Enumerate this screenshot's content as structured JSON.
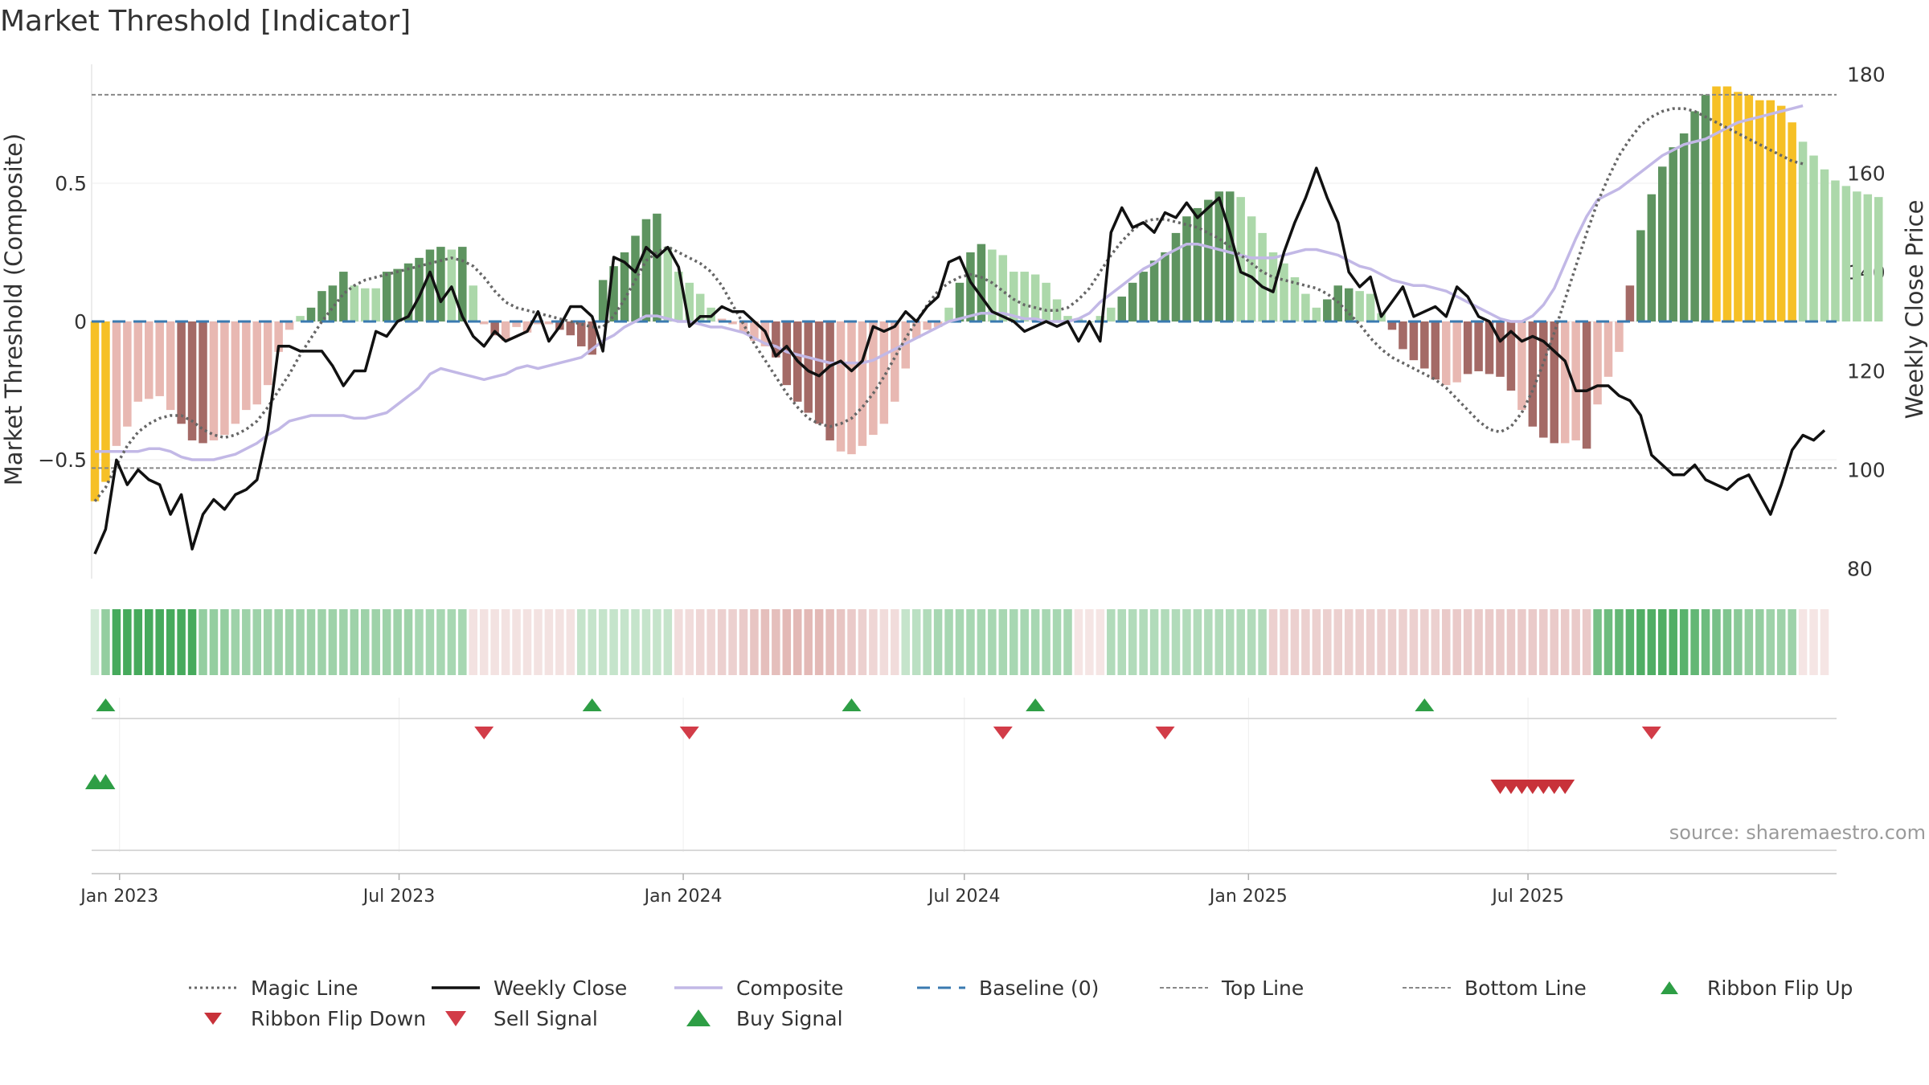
{
  "title": "Market Threshold [Indicator]",
  "source_label": "source: sharemaestro.com",
  "colors": {
    "strong_up": "#5e9460",
    "weak_up": "#acd8aa",
    "strong_down": "#a46a66",
    "weak_down": "#e8b8b2",
    "extreme": "#f6c026",
    "weekly_close": "#111111",
    "composite": "#c2b8e6",
    "magic_line": "#666666",
    "baseline": "#3a7ab0",
    "threshold_line": "#888888",
    "buy": "#2e9e45",
    "sell": "#d23c48",
    "flip_down": "#c8323a"
  },
  "legend": [
    {
      "key": "magic",
      "label": "Magic Line",
      "style": "dotted",
      "color": "#666666"
    },
    {
      "key": "close",
      "label": "Weekly Close",
      "style": "solid",
      "color": "#111111"
    },
    {
      "key": "composite",
      "label": "Composite",
      "style": "solid",
      "color": "#c2b8e6"
    },
    {
      "key": "baseline",
      "label": "Baseline (0)",
      "style": "dashed",
      "color": "#3a7ab0"
    },
    {
      "key": "top",
      "label": "Top Line",
      "style": "dashed-fine",
      "color": "#888888"
    },
    {
      "key": "bottom",
      "label": "Bottom Line",
      "style": "dashed-fine",
      "color": "#888888"
    },
    {
      "key": "flipup",
      "label": "Ribbon Flip Up",
      "style": "tri-up",
      "color": "#2e9e45"
    },
    {
      "key": "flipdown",
      "label": "Ribbon Flip Down",
      "style": "tri-down",
      "color": "#c8323a"
    },
    {
      "key": "sell",
      "label": "Sell Signal",
      "style": "tri-down",
      "color": "#d23c48"
    },
    {
      "key": "buy",
      "label": "Buy Signal",
      "style": "tri-up-big",
      "color": "#2e9e45"
    }
  ],
  "chart_data": {
    "type": "bar",
    "ylabel_left": "Market Threshold (Composite)",
    "ylabel_right": "Weekly Close Price",
    "left_ticks": [
      "0.5",
      "0",
      "−0.5"
    ],
    "left_tick_values": [
      0.5,
      0,
      -0.5
    ],
    "right_ticks": [
      "180",
      "160",
      "140",
      "120",
      "100",
      "80"
    ],
    "right_tick_values": [
      180,
      160,
      140,
      120,
      100,
      80
    ],
    "left_ylim": [
      -0.93,
      0.93
    ],
    "right_ylim": [
      78,
      182
    ],
    "top_line": 0.82,
    "bottom_line": -0.53,
    "x_start": "2022-12-16",
    "x_step_days": 7,
    "x_ticks": [
      {
        "label": "Jan 2023",
        "date": "2023-01-01"
      },
      {
        "label": "Jul 2023",
        "date": "2023-07-01"
      },
      {
        "label": "Jan 2024",
        "date": "2024-01-01"
      },
      {
        "label": "Jul 2024",
        "date": "2024-07-01"
      },
      {
        "label": "Jan 2025",
        "date": "2025-01-01"
      },
      {
        "label": "Jul 2025",
        "date": "2025-07-01"
      }
    ],
    "composite_bars": [
      -0.65,
      -0.58,
      -0.45,
      -0.38,
      -0.29,
      -0.28,
      -0.27,
      -0.32,
      -0.37,
      -0.43,
      -0.44,
      -0.43,
      -0.41,
      -0.37,
      -0.32,
      -0.3,
      -0.23,
      -0.11,
      -0.03,
      0.02,
      0.05,
      0.11,
      0.13,
      0.18,
      0.13,
      0.12,
      0.12,
      0.18,
      0.19,
      0.21,
      0.23,
      0.26,
      0.27,
      0.26,
      0.27,
      0.13,
      -0.01,
      -0.05,
      -0.07,
      -0.02,
      -0.04,
      -0.01,
      -0.01,
      -0.03,
      -0.05,
      -0.09,
      -0.12,
      0.15,
      0.2,
      0.25,
      0.31,
      0.37,
      0.39,
      0.27,
      0.18,
      0.14,
      0.1,
      0.05,
      0.01,
      -0.01,
      -0.04,
      -0.07,
      -0.09,
      -0.13,
      -0.23,
      -0.29,
      -0.33,
      -0.37,
      -0.43,
      -0.47,
      -0.48,
      -0.45,
      -0.41,
      -0.37,
      -0.29,
      -0.17,
      -0.06,
      -0.03,
      -0.02,
      0.05,
      0.14,
      0.25,
      0.28,
      0.26,
      0.24,
      0.18,
      0.18,
      0.17,
      0.14,
      0.08,
      0.02,
      0.01,
      0.0,
      0.02,
      0.05,
      0.09,
      0.14,
      0.18,
      0.22,
      0.25,
      0.32,
      0.38,
      0.41,
      0.44,
      0.47,
      0.47,
      0.45,
      0.38,
      0.32,
      0.25,
      0.21,
      0.16,
      0.1,
      0.05,
      0.08,
      0.13,
      0.12,
      0.11,
      0.1,
      0.03,
      -0.03,
      -0.1,
      -0.14,
      -0.17,
      -0.21,
      -0.23,
      -0.22,
      -0.19,
      -0.18,
      -0.19,
      -0.2,
      -0.25,
      -0.32,
      -0.38,
      -0.42,
      -0.44,
      -0.44,
      -0.43,
      -0.46,
      -0.3,
      -0.2,
      -0.11,
      0.13,
      0.33,
      0.46,
      0.56,
      0.63,
      0.68,
      0.76,
      0.82,
      0.85,
      0.85,
      0.83,
      0.82,
      0.8,
      0.8,
      0.78,
      0.72,
      0.65,
      0.6,
      0.55,
      0.51,
      0.49,
      0.47,
      0.46,
      0.45
    ],
    "bar_state": [
      "E",
      "E",
      "WD",
      "WD",
      "WD",
      "WD",
      "WD",
      "WD",
      "SD",
      "SD",
      "SD",
      "WD",
      "WD",
      "WD",
      "WD",
      "WD",
      "WD",
      "WD",
      "WD",
      "WU",
      "SU",
      "SU",
      "SU",
      "SU",
      "WU",
      "WU",
      "WU",
      "SU",
      "SU",
      "SU",
      "SU",
      "SU",
      "SU",
      "WU",
      "SU",
      "WU",
      "WD",
      "SD",
      "WD",
      "WD",
      "WD",
      "WD",
      "WD",
      "SD",
      "SD",
      "SD",
      "SD",
      "SU",
      "SU",
      "SU",
      "SU",
      "SU",
      "SU",
      "WU",
      "WU",
      "WU",
      "WU",
      "WU",
      "WD",
      "WD",
      "WD",
      "WD",
      "WD",
      "SD",
      "SD",
      "SD",
      "SD",
      "SD",
      "SD",
      "WD",
      "WD",
      "WD",
      "WD",
      "WD",
      "WD",
      "WD",
      "WD",
      "WD",
      "WD",
      "WU",
      "SU",
      "SU",
      "SU",
      "WU",
      "WU",
      "WU",
      "WU",
      "WU",
      "WU",
      "WU",
      "WU",
      "WU",
      "WU",
      "WU",
      "WU",
      "SU",
      "SU",
      "SU",
      "SU",
      "SU",
      "SU",
      "SU",
      "SU",
      "SU",
      "SU",
      "SU",
      "WU",
      "WU",
      "WU",
      "WU",
      "WU",
      "WU",
      "WU",
      "WU",
      "SU",
      "SU",
      "SU",
      "WU",
      "WU",
      "WU",
      "SD",
      "SD",
      "SD",
      "SD",
      "SD",
      "WD",
      "WD",
      "SD",
      "SD",
      "SD",
      "SD",
      "SD",
      "WD",
      "SD",
      "SD",
      "SD",
      "WD",
      "WD",
      "SD",
      "WD",
      "WD",
      "WD",
      "SD",
      "SU",
      "SU",
      "SU",
      "SU",
      "SU",
      "SU",
      "SU",
      "E",
      "E",
      "E",
      "E",
      "E",
      "E",
      "E",
      "E",
      "WU",
      "WU",
      "WU",
      "WU",
      "WU",
      "WU",
      "WU",
      "WU",
      "WU",
      "WU"
    ],
    "weekly_close": [
      83,
      88,
      102,
      97,
      100,
      98,
      97,
      91,
      95,
      84,
      91,
      94,
      92,
      95,
      96,
      98,
      108,
      125,
      125,
      124,
      124,
      124,
      121,
      117,
      120,
      120,
      128,
      127,
      130,
      131,
      135,
      140,
      134,
      137,
      131,
      127,
      125,
      128,
      126,
      127,
      128,
      132,
      126,
      129,
      133,
      133,
      131,
      124,
      143,
      142,
      140,
      145,
      143,
      145,
      141,
      129,
      131,
      131,
      133,
      132,
      132,
      130,
      128,
      123,
      125,
      122,
      120,
      119,
      121,
      122,
      120,
      122,
      129,
      128,
      129,
      132,
      130,
      133,
      135,
      142,
      143,
      138,
      135,
      132,
      131,
      130,
      128,
      129,
      130,
      129,
      130,
      126,
      130,
      126,
      148,
      153,
      149,
      150,
      148,
      152,
      151,
      154,
      151,
      153,
      155,
      148,
      140,
      139,
      137,
      136,
      144,
      150,
      155,
      161,
      155,
      150,
      140,
      137,
      139,
      131,
      134,
      137,
      131,
      132,
      133,
      131,
      137,
      135,
      131,
      130,
      126,
      128,
      126,
      127,
      126,
      124,
      122,
      116,
      116,
      117,
      117,
      115,
      114,
      111,
      103,
      101,
      99,
      99,
      101,
      98,
      97,
      96,
      98,
      99,
      95,
      91,
      97,
      104,
      107,
      106,
      108
    ],
    "composite_line": [
      -0.47,
      -0.47,
      -0.47,
      -0.47,
      -0.47,
      -0.46,
      -0.46,
      -0.47,
      -0.49,
      -0.5,
      -0.5,
      -0.5,
      -0.49,
      -0.48,
      -0.46,
      -0.44,
      -0.41,
      -0.39,
      -0.36,
      -0.35,
      -0.34,
      -0.34,
      -0.34,
      -0.34,
      -0.35,
      -0.35,
      -0.34,
      -0.33,
      -0.3,
      -0.27,
      -0.24,
      -0.19,
      -0.17,
      -0.18,
      -0.19,
      -0.2,
      -0.21,
      -0.2,
      -0.19,
      -0.17,
      -0.16,
      -0.17,
      -0.16,
      -0.15,
      -0.14,
      -0.13,
      -0.1,
      -0.07,
      -0.05,
      -0.02,
      0.0,
      0.02,
      0.02,
      0.01,
      0.0,
      0.0,
      -0.01,
      -0.02,
      -0.02,
      -0.03,
      -0.04,
      -0.06,
      -0.08,
      -0.09,
      -0.11,
      -0.12,
      -0.13,
      -0.14,
      -0.15,
      -0.15,
      -0.15,
      -0.15,
      -0.14,
      -0.12,
      -0.1,
      -0.08,
      -0.06,
      -0.04,
      -0.02,
      0.0,
      0.01,
      0.02,
      0.03,
      0.03,
      0.03,
      0.02,
      0.01,
      0.01,
      0.0,
      0.0,
      0.0,
      0.01,
      0.03,
      0.07,
      0.1,
      0.13,
      0.16,
      0.19,
      0.21,
      0.24,
      0.26,
      0.28,
      0.28,
      0.27,
      0.26,
      0.25,
      0.24,
      0.23,
      0.23,
      0.23,
      0.24,
      0.25,
      0.26,
      0.26,
      0.25,
      0.24,
      0.22,
      0.2,
      0.19,
      0.17,
      0.15,
      0.14,
      0.13,
      0.13,
      0.12,
      0.11,
      0.09,
      0.07,
      0.05,
      0.03,
      0.01,
      0.0,
      0.0,
      0.02,
      0.06,
      0.12,
      0.21,
      0.3,
      0.38,
      0.44,
      0.46,
      0.48,
      0.51,
      0.54,
      0.57,
      0.6,
      0.62,
      0.64,
      0.65,
      0.66,
      0.68,
      0.7,
      0.72,
      0.73,
      0.74,
      0.75,
      0.76,
      0.77,
      0.78
    ],
    "magic_line": [
      -0.65,
      -0.6,
      -0.52,
      -0.45,
      -0.4,
      -0.37,
      -0.35,
      -0.34,
      -0.34,
      -0.36,
      -0.39,
      -0.41,
      -0.42,
      -0.41,
      -0.39,
      -0.36,
      -0.31,
      -0.25,
      -0.19,
      -0.12,
      -0.06,
      0.0,
      0.05,
      0.1,
      0.13,
      0.15,
      0.16,
      0.17,
      0.18,
      0.19,
      0.2,
      0.21,
      0.22,
      0.23,
      0.22,
      0.2,
      0.16,
      0.11,
      0.07,
      0.05,
      0.04,
      0.03,
      0.02,
      0.01,
      0.0,
      -0.01,
      -0.02,
      -0.02,
      0.02,
      0.08,
      0.15,
      0.22,
      0.25,
      0.27,
      0.25,
      0.23,
      0.21,
      0.18,
      0.13,
      0.06,
      -0.01,
      -0.08,
      -0.14,
      -0.2,
      -0.26,
      -0.31,
      -0.35,
      -0.37,
      -0.38,
      -0.37,
      -0.35,
      -0.31,
      -0.26,
      -0.2,
      -0.13,
      -0.06,
      0.0,
      0.06,
      0.11,
      0.14,
      0.16,
      0.17,
      0.16,
      0.14,
      0.11,
      0.08,
      0.06,
      0.05,
      0.04,
      0.04,
      0.05,
      0.08,
      0.12,
      0.18,
      0.24,
      0.29,
      0.33,
      0.36,
      0.37,
      0.37,
      0.36,
      0.35,
      0.34,
      0.32,
      0.3,
      0.27,
      0.24,
      0.21,
      0.18,
      0.16,
      0.15,
      0.14,
      0.13,
      0.12,
      0.1,
      0.07,
      0.03,
      -0.01,
      -0.06,
      -0.1,
      -0.13,
      -0.15,
      -0.17,
      -0.19,
      -0.21,
      -0.24,
      -0.28,
      -0.32,
      -0.36,
      -0.39,
      -0.4,
      -0.38,
      -0.33,
      -0.25,
      -0.15,
      -0.04,
      0.08,
      0.2,
      0.32,
      0.43,
      0.52,
      0.6,
      0.66,
      0.71,
      0.74,
      0.76,
      0.77,
      0.77,
      0.76,
      0.74,
      0.72,
      0.7,
      0.68,
      0.66,
      0.64,
      0.62,
      0.6,
      0.58,
      0.57
    ],
    "ribbon": [
      0.0,
      0.55,
      0.95,
      0.95,
      0.95,
      0.95,
      0.95,
      0.95,
      0.95,
      0.95,
      0.55,
      0.55,
      0.55,
      0.5,
      0.5,
      0.5,
      0.5,
      0.5,
      0.5,
      0.5,
      0.5,
      0.5,
      0.5,
      0.5,
      0.5,
      0.5,
      0.5,
      0.5,
      0.5,
      0.5,
      0.45,
      0.45,
      0.45,
      0.45,
      0.45,
      -0.25,
      -0.25,
      -0.25,
      -0.25,
      -0.25,
      -0.25,
      -0.25,
      -0.25,
      -0.25,
      -0.25,
      0.3,
      0.3,
      0.3,
      0.3,
      0.3,
      0.3,
      0.3,
      0.3,
      0.3,
      -0.3,
      -0.3,
      -0.35,
      -0.35,
      -0.4,
      -0.4,
      -0.45,
      -0.5,
      -0.55,
      -0.55,
      -0.6,
      -0.6,
      -0.6,
      -0.6,
      -0.55,
      -0.5,
      -0.45,
      -0.4,
      -0.35,
      -0.3,
      -0.3,
      0.3,
      0.35,
      0.4,
      0.45,
      0.45,
      0.45,
      0.45,
      0.45,
      0.45,
      0.45,
      0.45,
      0.45,
      0.45,
      0.45,
      0.45,
      0.45,
      -0.2,
      -0.2,
      -0.2,
      0.4,
      0.4,
      0.4,
      0.4,
      0.4,
      0.4,
      0.4,
      0.4,
      0.4,
      0.4,
      0.4,
      0.4,
      0.4,
      0.4,
      0.4,
      -0.4,
      -0.4,
      -0.4,
      -0.4,
      -0.4,
      -0.4,
      -0.4,
      -0.4,
      -0.4,
      -0.4,
      -0.4,
      -0.4,
      -0.4,
      -0.4,
      -0.4,
      -0.4,
      -0.45,
      -0.45,
      -0.45,
      -0.45,
      -0.45,
      -0.45,
      -0.45,
      -0.45,
      -0.45,
      -0.45,
      -0.45,
      -0.45,
      -0.45,
      -0.45,
      0.7,
      0.75,
      0.8,
      0.85,
      0.9,
      0.9,
      0.9,
      0.9,
      0.85,
      0.8,
      0.75,
      0.7,
      0.65,
      0.6,
      0.55,
      0.55,
      0.5,
      0.5,
      0.5,
      -0.2,
      -0.2,
      -0.2
    ],
    "buy_signals": [
      1,
      46,
      70,
      87,
      123
    ],
    "sell_signals": [
      36,
      55,
      84,
      99,
      144
    ],
    "ribbon_flip_up": [
      0,
      1
    ],
    "ribbon_flip_down": [
      130,
      131,
      132,
      133,
      134,
      135,
      136
    ]
  }
}
